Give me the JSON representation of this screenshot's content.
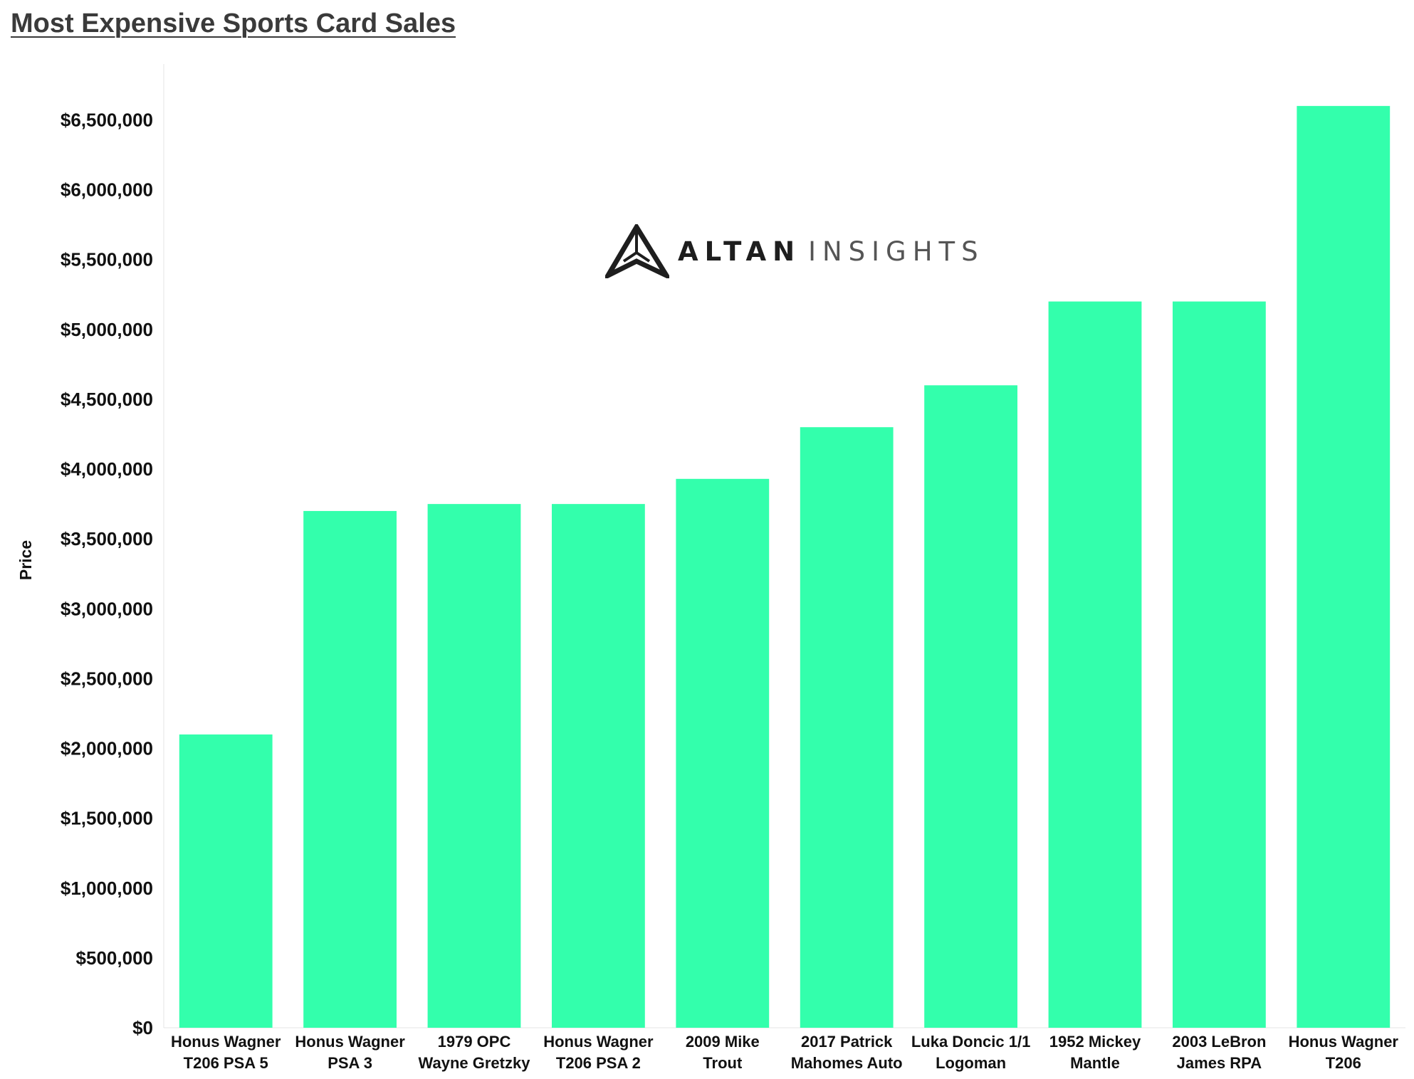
{
  "title": "Most Expensive Sports Card Sales",
  "logo": {
    "word1": "ALTAN",
    "word2": "INSIGHTS"
  },
  "colors": {
    "bar": "#33FFAC",
    "axis_text": "#111111",
    "title": "#3a3a3a"
  },
  "chart_data": {
    "type": "bar",
    "ylabel": "Price",
    "xlabel": "",
    "ylim": [
      0,
      6900000
    ],
    "y_tick_step": 500000,
    "y_tick_labels": [
      "$0",
      "$500,000",
      "$1,000,000",
      "$1,500,000",
      "$2,000,000",
      "$2,500,000",
      "$3,000,000",
      "$3,500,000",
      "$4,000,000",
      "$4,500,000",
      "$5,000,000",
      "$5,500,000",
      "$6,000,000",
      "$6,500,000"
    ],
    "grid": false,
    "categories": [
      [
        "Honus Wagner",
        "T206 PSA 5"
      ],
      [
        "Honus Wagner",
        "PSA 3"
      ],
      [
        "1979 OPC",
        "Wayne Gretzky"
      ],
      [
        "Honus Wagner",
        "T206  PSA 2"
      ],
      [
        "2009 Mike",
        "Trout"
      ],
      [
        "2017 Patrick",
        "Mahomes Auto"
      ],
      [
        "Luka Doncic 1/1",
        "Logoman"
      ],
      [
        "1952 Mickey",
        "Mantle"
      ],
      [
        "2003 LeBron",
        "James RPA"
      ],
      [
        "Honus Wagner",
        "T206"
      ]
    ],
    "values": [
      2100000,
      3700000,
      3750000,
      3750000,
      3930000,
      4300000,
      4600000,
      5200000,
      5200000,
      6600000
    ]
  }
}
